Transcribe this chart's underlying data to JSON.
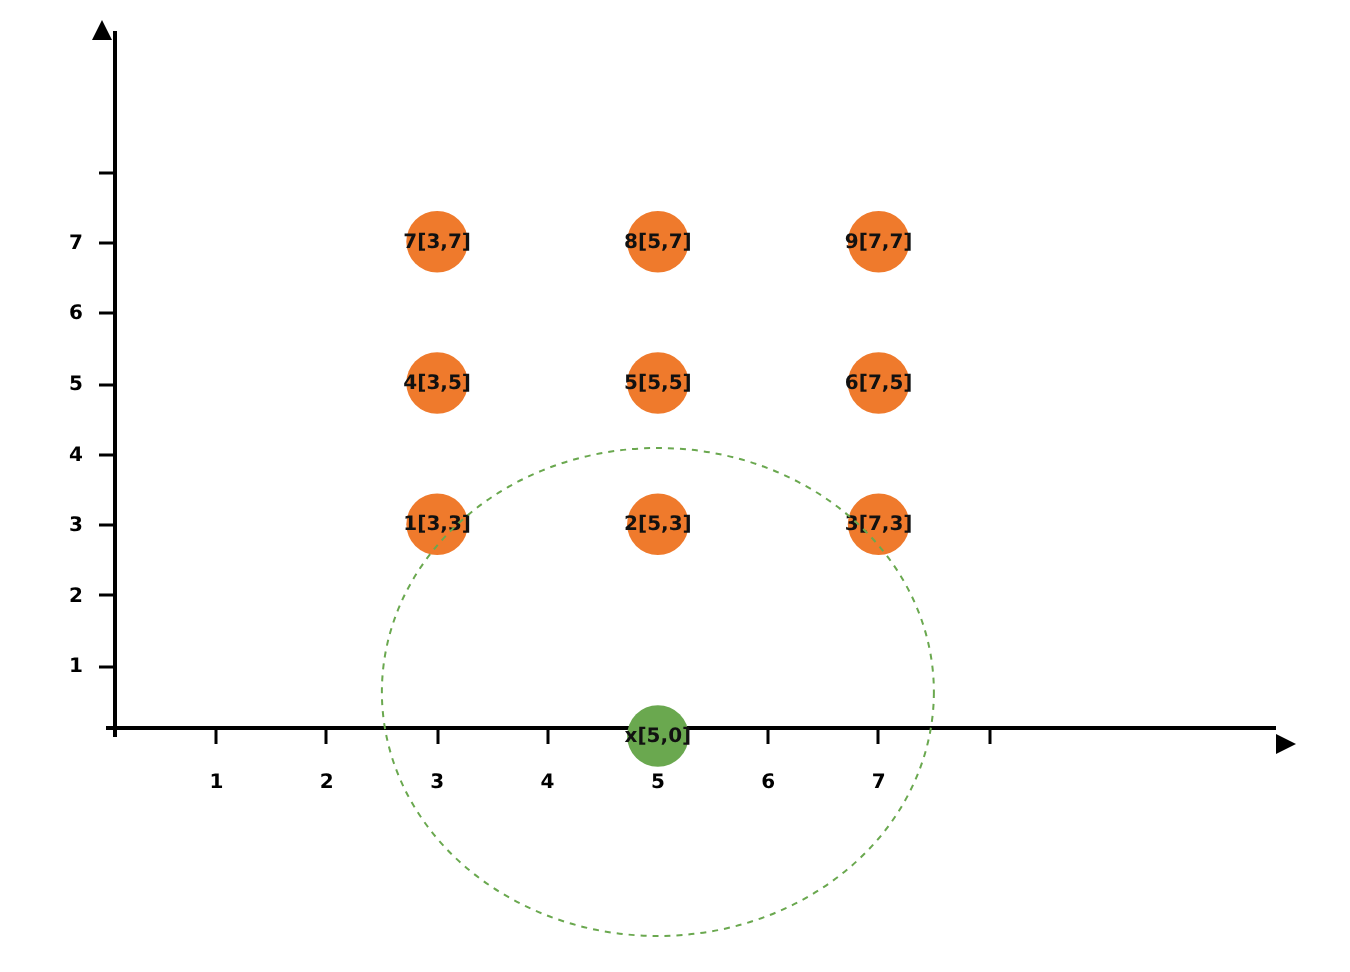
{
  "chart_data": {
    "type": "scatter",
    "xlim": [
      0,
      10.6
    ],
    "ylim": [
      0,
      10
    ],
    "xticks": [
      1,
      2,
      3,
      4,
      5,
      6,
      7,
      {
        "value": 8,
        "label": null
      }
    ],
    "yticks": [
      1,
      2,
      3,
      4,
      5,
      6,
      7,
      {
        "value": 8,
        "label": null
      }
    ],
    "marker": "circle",
    "grid": false,
    "series": [
      {
        "color": "#ef7a2c",
        "x": [
          3,
          5,
          7,
          3,
          5,
          7,
          3,
          5,
          7
        ],
        "values": [
          3,
          3,
          3,
          5,
          5,
          5,
          7,
          7,
          7
        ]
      },
      {
        "color": "#6aa84f",
        "x": [
          5
        ],
        "values": [
          0
        ]
      }
    ],
    "annotations": [
      {
        "text": "1[3,3]",
        "x": 3,
        "y": 3
      },
      {
        "text": "2[5,3]",
        "x": 5,
        "y": 3
      },
      {
        "text": "3[7,3]",
        "x": 7,
        "y": 3
      },
      {
        "text": "4[3,5]",
        "x": 3,
        "y": 5
      },
      {
        "text": "5[5,5]",
        "x": 5,
        "y": 5
      },
      {
        "text": "6[7,5]",
        "x": 7,
        "y": 5
      },
      {
        "text": "7[3,7]",
        "x": 3,
        "y": 7
      },
      {
        "text": "8[5,7]",
        "x": 5,
        "y": 7
      },
      {
        "text": "9[7,7]",
        "x": 7,
        "y": 7
      },
      {
        "text": "x[5,0]",
        "x": 5,
        "y": 0
      }
    ]
  }
}
